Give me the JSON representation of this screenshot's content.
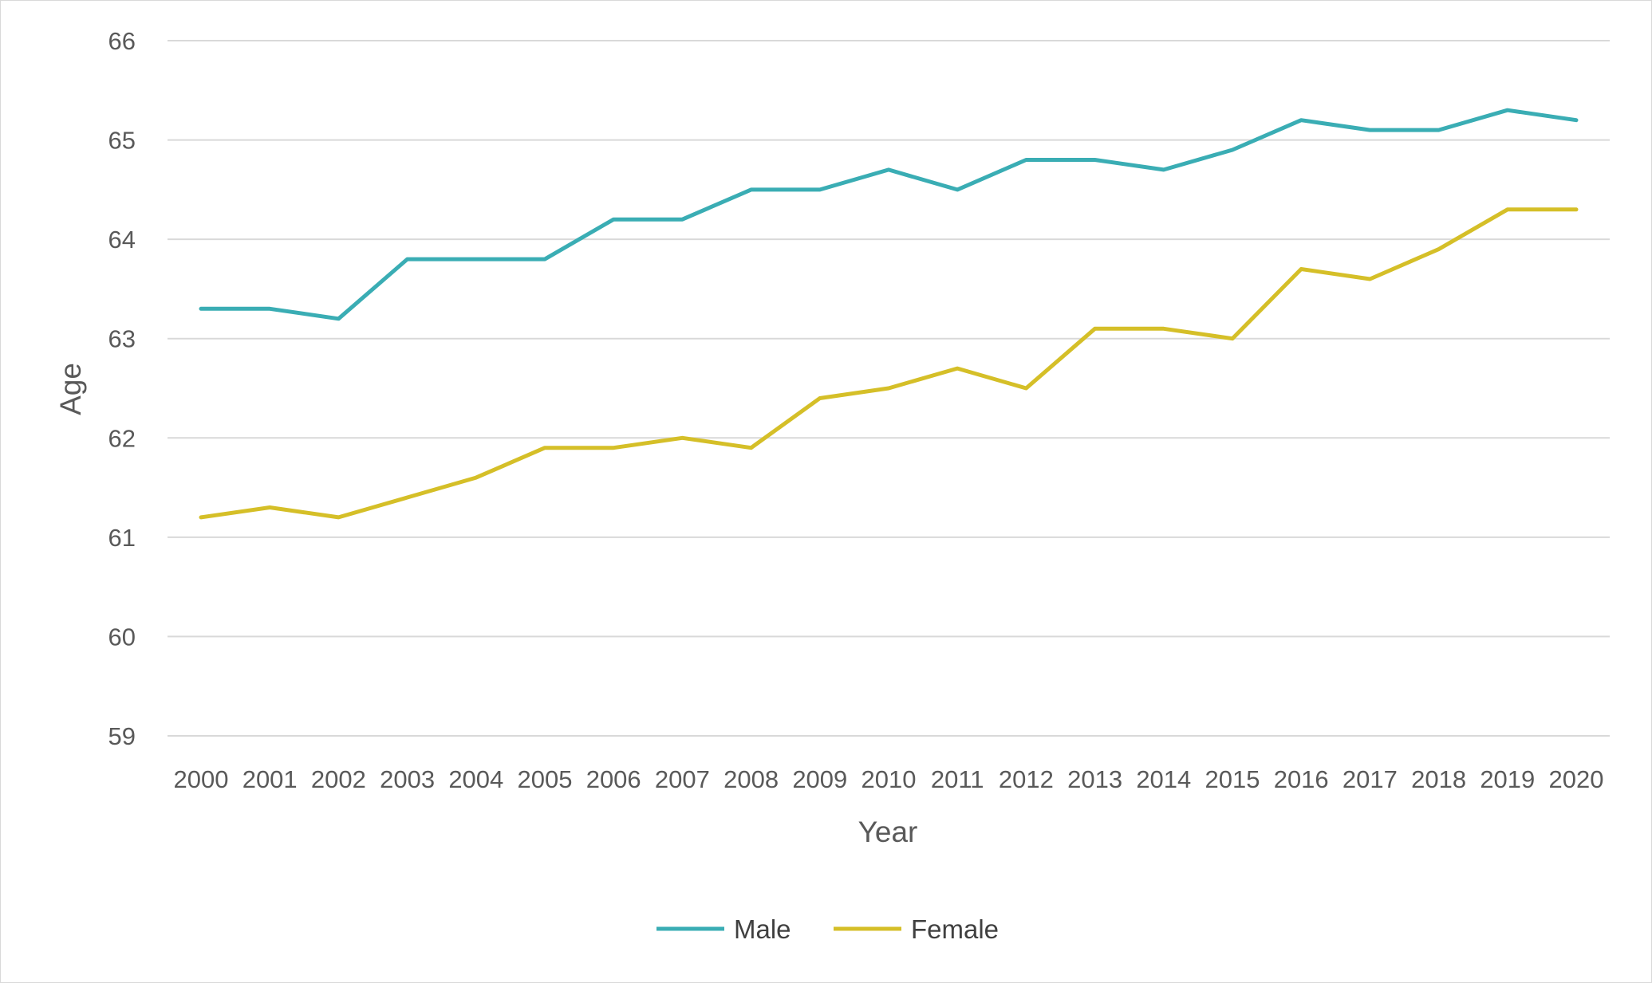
{
  "chart_data": {
    "type": "line",
    "title": "",
    "xlabel": "Year",
    "ylabel": "Age",
    "categories": [
      "2000",
      "2001",
      "2002",
      "2003",
      "2004",
      "2005",
      "2006",
      "2007",
      "2008",
      "2009",
      "2010",
      "2011",
      "2012",
      "2013",
      "2014",
      "2015",
      "2016",
      "2017",
      "2018",
      "2019",
      "2020"
    ],
    "ylim": [
      59,
      66
    ],
    "yticks": [
      "59",
      "60",
      "61",
      "62",
      "63",
      "64",
      "65",
      "66"
    ],
    "grid": true,
    "legend_position": "bottom",
    "series": [
      {
        "name": "Male",
        "color": "#3aadb4",
        "values": [
          63.3,
          63.3,
          63.2,
          63.8,
          63.8,
          63.8,
          64.2,
          64.2,
          64.5,
          64.5,
          64.7,
          64.5,
          64.8,
          64.8,
          64.7,
          64.9,
          65.2,
          65.1,
          65.1,
          65.3,
          65.2
        ]
      },
      {
        "name": "Female",
        "color": "#d5bf28",
        "values": [
          61.2,
          61.3,
          61.2,
          61.4,
          61.6,
          61.9,
          61.9,
          62.0,
          61.9,
          62.4,
          62.5,
          62.7,
          62.5,
          63.1,
          63.1,
          63.0,
          63.7,
          63.6,
          63.9,
          64.3,
          64.3
        ]
      }
    ]
  }
}
